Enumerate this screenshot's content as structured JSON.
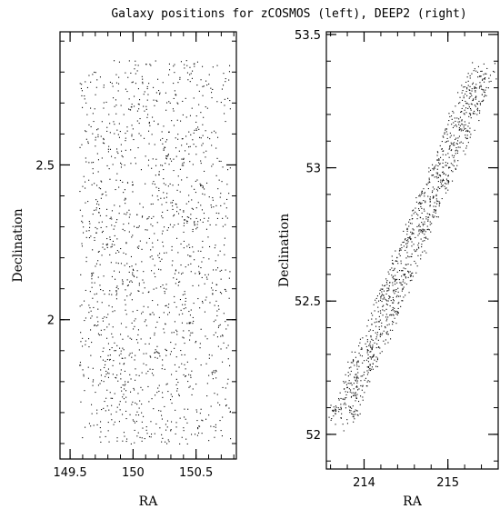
{
  "figure": {
    "title": "Galaxy positions for zCOSMOS (left), DEEP2 (right)"
  },
  "chart_data": [
    {
      "type": "scatter",
      "name": "zCOSMOS",
      "xlabel": "RA",
      "ylabel": "Declination",
      "xlim": [
        149.42,
        150.82
      ],
      "ylim": [
        1.55,
        2.93
      ],
      "x_ticks": [
        149.5,
        150,
        150.5
      ],
      "x_tick_labels": [
        "149.5",
        "150",
        "150.5"
      ],
      "y_ticks": [
        2,
        2.5
      ],
      "y_tick_labels": [
        "2",
        "2.5"
      ],
      "grid": false,
      "legend": "none",
      "marker_color": "#000000",
      "footprint": {
        "ra_range": [
          149.57,
          150.77
        ],
        "dec_range": [
          1.6,
          2.84
        ],
        "n_points": 1500,
        "density_peak": [
          150.1,
          2.22
        ]
      }
    },
    {
      "type": "scatter",
      "name": "DEEP2",
      "xlabel": "RA",
      "ylabel": "Declination",
      "xlim": [
        213.55,
        215.6
      ],
      "ylim": [
        51.87,
        53.51
      ],
      "x_ticks": [
        214,
        215
      ],
      "x_tick_labels": [
        "214",
        "215"
      ],
      "y_ticks": [
        52,
        52.5,
        53,
        53.5
      ],
      "y_tick_labels": [
        "52",
        "52.5",
        "53",
        "53.5"
      ],
      "grid": false,
      "legend": "none",
      "marker_color": "#000000",
      "footprint": {
        "strip_start": [
          213.72,
          52.05
        ],
        "strip_end": [
          215.42,
          53.38
        ],
        "half_width_ra": 0.16,
        "n_points": 1100
      }
    }
  ]
}
